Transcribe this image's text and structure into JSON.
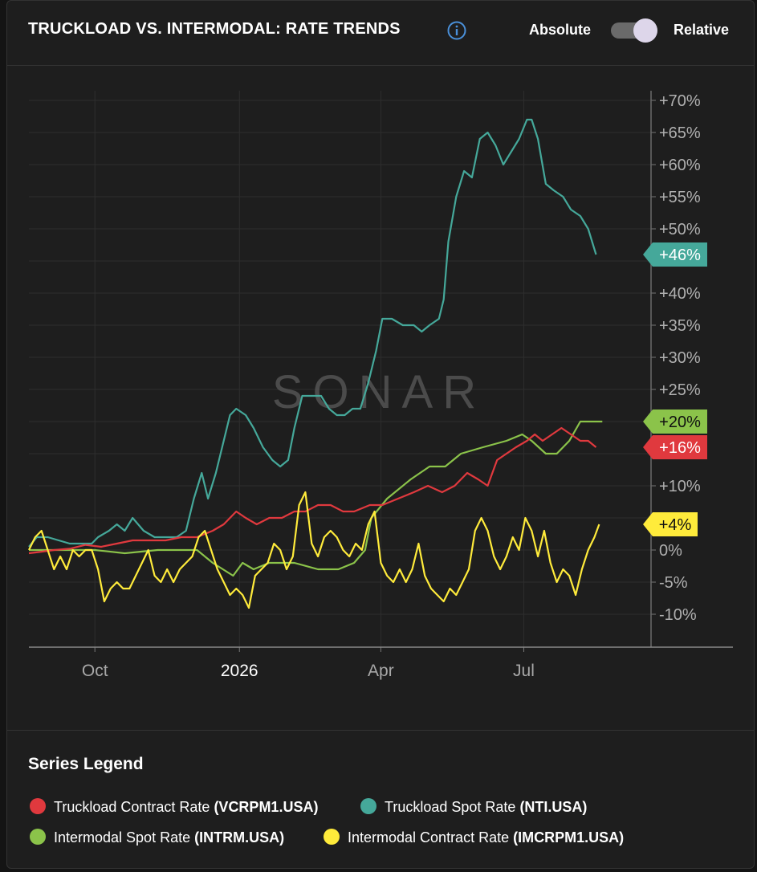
{
  "header": {
    "title": "TRUCKLOAD VS. INTERMODAL: RATE TRENDS",
    "toggle_left": "Absolute",
    "toggle_right": "Relative",
    "toggle_state": "Relative"
  },
  "watermark": "SONAR",
  "legend": {
    "title": "Series Legend",
    "items": [
      {
        "name": "Truckload Contract Rate",
        "code": "(VCRPM1.USA)",
        "color": "#e0393e"
      },
      {
        "name": "Truckload Spot Rate",
        "code": "(NTI.USA)",
        "color": "#45a89a"
      },
      {
        "name": "Intermodal Spot Rate",
        "code": "(INTRM.USA)",
        "color": "#8bc34a"
      },
      {
        "name": "Intermodal Contract Rate",
        "code": "(IMCRPM1.USA)",
        "color": "#ffeb3b"
      }
    ]
  },
  "chart_data": {
    "type": "line",
    "x_tick_labels": [
      "Oct",
      "2026",
      "Apr",
      "Jul"
    ],
    "x_tick_dates": [
      "2025-10-01",
      "2026-01-01",
      "2026-04-01",
      "2026-07-01"
    ],
    "x_range": [
      "2025-08-20",
      "2026-09-20"
    ],
    "y_tick_labels": [
      "+70%",
      "+65%",
      "+60%",
      "+55%",
      "+50%",
      "+45%",
      "+40%",
      "+35%",
      "+30%",
      "+25%",
      "+20%",
      "+15%",
      "+10%",
      "+5%",
      "0%",
      "-5%",
      "-10%"
    ],
    "y_ticks": [
      70,
      65,
      60,
      55,
      50,
      45,
      40,
      35,
      30,
      25,
      20,
      15,
      10,
      5,
      0,
      -5,
      -10
    ],
    "ylim": [
      -15,
      72
    ],
    "y_unit": "%",
    "grid": true,
    "series": [
      {
        "name": "Truckload Spot Rate",
        "color": "#45a89a",
        "end_label": "+46%",
        "points": [
          [
            "2025-08-20",
            0.5
          ],
          [
            "2025-08-25",
            2
          ],
          [
            "2025-09-01",
            2
          ],
          [
            "2025-09-08",
            1.5
          ],
          [
            "2025-09-15",
            1
          ],
          [
            "2025-09-22",
            1
          ],
          [
            "2025-09-29",
            1
          ],
          [
            "2025-10-03",
            2
          ],
          [
            "2025-10-10",
            3
          ],
          [
            "2025-10-15",
            4
          ],
          [
            "2025-10-20",
            3
          ],
          [
            "2025-10-25",
            5
          ],
          [
            "2025-11-01",
            3
          ],
          [
            "2025-11-08",
            2
          ],
          [
            "2025-11-15",
            2
          ],
          [
            "2025-11-22",
            2
          ],
          [
            "2025-11-28",
            3
          ],
          [
            "2025-12-03",
            8
          ],
          [
            "2025-12-08",
            12
          ],
          [
            "2025-12-12",
            8
          ],
          [
            "2025-12-17",
            12
          ],
          [
            "2025-12-22",
            17
          ],
          [
            "2025-12-26",
            21
          ],
          [
            "2025-12-30",
            22
          ],
          [
            "2026-01-05",
            21
          ],
          [
            "2026-01-10",
            19
          ],
          [
            "2026-01-16",
            16
          ],
          [
            "2026-01-22",
            14
          ],
          [
            "2026-01-27",
            13
          ],
          [
            "2026-02-01",
            14
          ],
          [
            "2026-02-05",
            19
          ],
          [
            "2026-02-10",
            24
          ],
          [
            "2026-02-16",
            24
          ],
          [
            "2026-02-22",
            24
          ],
          [
            "2026-02-27",
            22
          ],
          [
            "2026-03-04",
            21
          ],
          [
            "2026-03-09",
            21
          ],
          [
            "2026-03-14",
            22
          ],
          [
            "2026-03-19",
            22
          ],
          [
            "2026-03-24",
            26
          ],
          [
            "2026-03-29",
            31
          ],
          [
            "2026-04-02",
            36
          ],
          [
            "2026-04-08",
            36
          ],
          [
            "2026-04-15",
            35
          ],
          [
            "2026-04-22",
            35
          ],
          [
            "2026-04-27",
            34
          ],
          [
            "2026-05-02",
            35
          ],
          [
            "2026-05-08",
            36
          ],
          [
            "2026-05-11",
            39
          ],
          [
            "2026-05-14",
            48
          ],
          [
            "2026-05-19",
            55
          ],
          [
            "2026-05-24",
            59
          ],
          [
            "2026-05-29",
            58
          ],
          [
            "2026-06-03",
            64
          ],
          [
            "2026-06-08",
            65
          ],
          [
            "2026-06-13",
            63
          ],
          [
            "2026-06-18",
            60
          ],
          [
            "2026-06-23",
            62
          ],
          [
            "2026-06-28",
            64
          ],
          [
            "2026-07-03",
            67
          ],
          [
            "2026-07-06",
            67
          ],
          [
            "2026-07-10",
            64
          ],
          [
            "2026-07-15",
            57
          ],
          [
            "2026-07-20",
            56
          ],
          [
            "2026-07-26",
            55
          ],
          [
            "2026-07-31",
            53
          ],
          [
            "2026-08-06",
            52
          ],
          [
            "2026-08-11",
            50
          ],
          [
            "2026-08-16",
            46
          ]
        ]
      },
      {
        "name": "Intermodal Spot Rate",
        "color": "#8bc34a",
        "end_label": "+20%",
        "points": [
          [
            "2025-08-20",
            0
          ],
          [
            "2025-09-01",
            0
          ],
          [
            "2025-09-15",
            0
          ],
          [
            "2025-10-01",
            0
          ],
          [
            "2025-10-20",
            -0.5
          ],
          [
            "2025-11-10",
            0
          ],
          [
            "2025-11-25",
            0
          ],
          [
            "2025-12-05",
            0
          ],
          [
            "2025-12-15",
            -2
          ],
          [
            "2025-12-28",
            -4
          ],
          [
            "2026-01-03",
            -2
          ],
          [
            "2026-01-10",
            -3
          ],
          [
            "2026-01-20",
            -2
          ],
          [
            "2026-02-05",
            -2
          ],
          [
            "2026-02-20",
            -3
          ],
          [
            "2026-03-05",
            -3
          ],
          [
            "2026-03-15",
            -2
          ],
          [
            "2026-03-22",
            0
          ],
          [
            "2026-03-26",
            5
          ],
          [
            "2026-04-05",
            8
          ],
          [
            "2026-04-20",
            11
          ],
          [
            "2026-05-02",
            13
          ],
          [
            "2026-05-12",
            13
          ],
          [
            "2026-05-22",
            15
          ],
          [
            "2026-06-05",
            16
          ],
          [
            "2026-06-20",
            17
          ],
          [
            "2026-06-30",
            18
          ],
          [
            "2026-07-06",
            17
          ],
          [
            "2026-07-15",
            15
          ],
          [
            "2026-07-22",
            15
          ],
          [
            "2026-07-30",
            17
          ],
          [
            "2026-08-06",
            20
          ],
          [
            "2026-08-13",
            20
          ],
          [
            "2026-08-20",
            20
          ]
        ]
      },
      {
        "name": "Truckload Contract Rate",
        "color": "#e0393e",
        "end_label": "+16%",
        "points": [
          [
            "2025-08-20",
            -0.5
          ],
          [
            "2025-08-27",
            -0.3
          ],
          [
            "2025-09-05",
            0
          ],
          [
            "2025-09-15",
            0.2
          ],
          [
            "2025-09-25",
            0.8
          ],
          [
            "2025-10-05",
            0.5
          ],
          [
            "2025-10-15",
            1
          ],
          [
            "2025-10-25",
            1.5
          ],
          [
            "2025-11-05",
            1.5
          ],
          [
            "2025-11-15",
            1.5
          ],
          [
            "2025-11-25",
            2
          ],
          [
            "2025-12-05",
            2
          ],
          [
            "2025-12-15",
            3
          ],
          [
            "2025-12-22",
            4
          ],
          [
            "2025-12-30",
            6
          ],
          [
            "2026-01-05",
            5
          ],
          [
            "2026-01-12",
            4
          ],
          [
            "2026-01-20",
            5
          ],
          [
            "2026-01-28",
            5
          ],
          [
            "2026-02-05",
            6
          ],
          [
            "2026-02-12",
            6
          ],
          [
            "2026-02-20",
            7
          ],
          [
            "2026-02-28",
            7
          ],
          [
            "2026-03-08",
            6
          ],
          [
            "2026-03-15",
            6
          ],
          [
            "2026-03-25",
            7
          ],
          [
            "2026-04-02",
            7
          ],
          [
            "2026-04-12",
            8
          ],
          [
            "2026-04-22",
            9
          ],
          [
            "2026-05-01",
            10
          ],
          [
            "2026-05-10",
            9
          ],
          [
            "2026-05-18",
            10
          ],
          [
            "2026-05-26",
            12
          ],
          [
            "2026-06-02",
            11
          ],
          [
            "2026-06-08",
            10
          ],
          [
            "2026-06-14",
            14
          ],
          [
            "2026-06-20",
            15
          ],
          [
            "2026-06-26",
            16
          ],
          [
            "2026-07-03",
            17
          ],
          [
            "2026-07-08",
            18
          ],
          [
            "2026-07-13",
            17
          ],
          [
            "2026-07-19",
            18
          ],
          [
            "2026-07-25",
            19
          ],
          [
            "2026-07-31",
            18
          ],
          [
            "2026-08-06",
            17
          ],
          [
            "2026-08-11",
            17
          ],
          [
            "2026-08-16",
            16
          ]
        ]
      },
      {
        "name": "Intermodal Contract Rate",
        "color": "#ffeb3b",
        "end_label": "+4%",
        "points": [
          [
            "2025-08-20",
            0
          ],
          [
            "2025-08-24",
            2
          ],
          [
            "2025-08-28",
            3
          ],
          [
            "2025-09-01",
            0
          ],
          [
            "2025-09-05",
            -3
          ],
          [
            "2025-09-09",
            -1
          ],
          [
            "2025-09-13",
            -3
          ],
          [
            "2025-09-17",
            0
          ],
          [
            "2025-09-21",
            -1
          ],
          [
            "2025-09-25",
            0
          ],
          [
            "2025-09-29",
            0
          ],
          [
            "2025-10-03",
            -3
          ],
          [
            "2025-10-07",
            -8
          ],
          [
            "2025-10-11",
            -6
          ],
          [
            "2025-10-15",
            -5
          ],
          [
            "2025-10-19",
            -6
          ],
          [
            "2025-10-23",
            -6
          ],
          [
            "2025-10-27",
            -4
          ],
          [
            "2025-10-31",
            -2
          ],
          [
            "2025-11-04",
            0
          ],
          [
            "2025-11-08",
            -4
          ],
          [
            "2025-11-12",
            -5
          ],
          [
            "2025-11-16",
            -3
          ],
          [
            "2025-11-20",
            -5
          ],
          [
            "2025-11-24",
            -3
          ],
          [
            "2025-11-28",
            -2
          ],
          [
            "2025-12-02",
            -1
          ],
          [
            "2025-12-06",
            2
          ],
          [
            "2025-12-10",
            3
          ],
          [
            "2025-12-14",
            0
          ],
          [
            "2025-12-18",
            -3
          ],
          [
            "2025-12-22",
            -5
          ],
          [
            "2025-12-26",
            -7
          ],
          [
            "2025-12-30",
            -6
          ],
          [
            "2026-01-03",
            -7
          ],
          [
            "2026-01-07",
            -9
          ],
          [
            "2026-01-11",
            -4
          ],
          [
            "2026-01-15",
            -3
          ],
          [
            "2026-01-19",
            -2
          ],
          [
            "2026-01-23",
            1
          ],
          [
            "2026-01-27",
            0
          ],
          [
            "2026-01-31",
            -3
          ],
          [
            "2026-02-04",
            -1
          ],
          [
            "2026-02-08",
            7
          ],
          [
            "2026-02-12",
            9
          ],
          [
            "2026-02-16",
            1
          ],
          [
            "2026-02-20",
            -1
          ],
          [
            "2026-02-24",
            2
          ],
          [
            "2026-02-28",
            3
          ],
          [
            "2026-03-04",
            2
          ],
          [
            "2026-03-08",
            0
          ],
          [
            "2026-03-12",
            -1
          ],
          [
            "2026-03-16",
            1
          ],
          [
            "2026-03-20",
            0
          ],
          [
            "2026-03-24",
            4
          ],
          [
            "2026-03-28",
            6
          ],
          [
            "2026-04-01",
            -2
          ],
          [
            "2026-04-05",
            -4
          ],
          [
            "2026-04-09",
            -5
          ],
          [
            "2026-04-13",
            -3
          ],
          [
            "2026-04-17",
            -5
          ],
          [
            "2026-04-21",
            -3
          ],
          [
            "2026-04-25",
            1
          ],
          [
            "2026-04-29",
            -4
          ],
          [
            "2026-05-03",
            -6
          ],
          [
            "2026-05-07",
            -7
          ],
          [
            "2026-05-11",
            -8
          ],
          [
            "2026-05-15",
            -6
          ],
          [
            "2026-05-19",
            -7
          ],
          [
            "2026-05-23",
            -5
          ],
          [
            "2026-05-27",
            -3
          ],
          [
            "2026-05-31",
            3
          ],
          [
            "2026-06-04",
            5
          ],
          [
            "2026-06-08",
            3
          ],
          [
            "2026-06-12",
            -1
          ],
          [
            "2026-06-16",
            -3
          ],
          [
            "2026-06-20",
            -1
          ],
          [
            "2026-06-24",
            2
          ],
          [
            "2026-06-28",
            0
          ],
          [
            "2026-07-02",
            5
          ],
          [
            "2026-07-06",
            3
          ],
          [
            "2026-07-10",
            -1
          ],
          [
            "2026-07-14",
            3
          ],
          [
            "2026-07-18",
            -2
          ],
          [
            "2026-07-22",
            -5
          ],
          [
            "2026-07-26",
            -3
          ],
          [
            "2026-07-30",
            -4
          ],
          [
            "2026-08-03",
            -7
          ],
          [
            "2026-08-07",
            -3
          ],
          [
            "2026-08-11",
            0
          ],
          [
            "2026-08-15",
            2
          ],
          [
            "2026-08-18",
            4
          ]
        ]
      }
    ]
  }
}
